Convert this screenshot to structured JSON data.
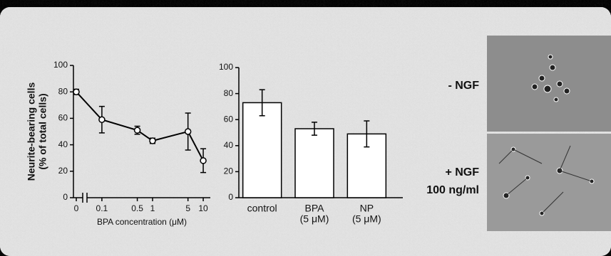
{
  "chart_data": [
    {
      "type": "line",
      "ylabel": [
        "Neurite-bearing cells",
        "(% of total cells)"
      ],
      "xlabel": "BPA concentration (μM)",
      "x": [
        0,
        0.1,
        0.5,
        1,
        5,
        10
      ],
      "xscale": "log",
      "axis_break": true,
      "xlim": [
        0.056,
        13.8
      ],
      "xticks": [
        0,
        0.1,
        0.5,
        1,
        5,
        10
      ],
      "series": [
        {
          "values": [
            80,
            59,
            51,
            43,
            50,
            28
          ],
          "errors": [
            2,
            10,
            3,
            2,
            14,
            9
          ],
          "color": "#000"
        }
      ],
      "ylim": [
        0,
        100
      ],
      "yticks": [
        0,
        20,
        40,
        60,
        80,
        100
      ]
    },
    {
      "type": "bar",
      "categories": [
        "control",
        "BPA",
        "NP"
      ],
      "category_sublabels": [
        null,
        "(5 μM)",
        "(5 μM)"
      ],
      "values": [
        73,
        53,
        49
      ],
      "errors": [
        10,
        5,
        10
      ],
      "color": "#fff",
      "ylim": [
        0,
        100
      ],
      "yticks": [
        0,
        20,
        40,
        60,
        80,
        100
      ]
    }
  ],
  "panels": [
    {
      "label": "- NGF"
    },
    {
      "label": "+ NGF",
      "sublabel": "100 ng/ml"
    }
  ]
}
